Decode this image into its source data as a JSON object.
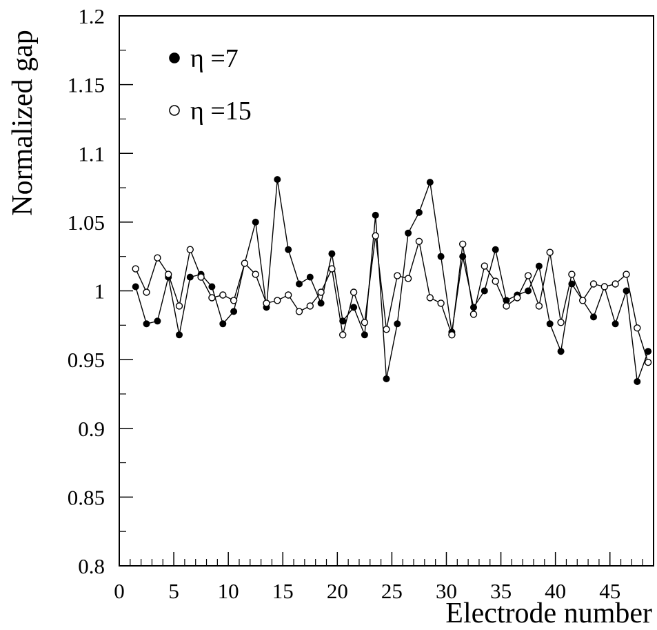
{
  "chart_data": {
    "type": "line",
    "xlabel": "Electrode number",
    "ylabel": "Normalized gap",
    "xlim": [
      0,
      49
    ],
    "ylim": [
      0.8,
      1.2
    ],
    "x_ticks": [
      0,
      5,
      10,
      15,
      20,
      25,
      30,
      35,
      40,
      45
    ],
    "x_tick_labels": [
      "0",
      "5",
      "10",
      "15",
      "20",
      "25",
      "30",
      "35",
      "40",
      "45"
    ],
    "y_ticks": [
      0.8,
      0.85,
      0.9,
      0.95,
      1.0,
      1.05,
      1.1,
      1.15,
      1.2
    ],
    "y_tick_labels": [
      "0.8",
      "0.85",
      "0.9",
      "0.95",
      "1",
      "1.05",
      "1.1",
      "1.15",
      "1.2"
    ],
    "grid": false,
    "legend_position": "top-left",
    "x": [
      1.5,
      2.5,
      3.5,
      4.5,
      5.5,
      6.5,
      7.5,
      8.5,
      9.5,
      10.5,
      11.5,
      12.5,
      13.5,
      14.5,
      15.5,
      16.5,
      17.5,
      18.5,
      19.5,
      20.5,
      21.5,
      22.5,
      23.5,
      24.5,
      25.5,
      26.5,
      27.5,
      28.5,
      29.5,
      30.5,
      31.5,
      32.5,
      33.5,
      34.5,
      35.5,
      36.5,
      37.5,
      38.5,
      39.5,
      40.5,
      41.5,
      42.5,
      43.5,
      44.5,
      45.5,
      46.5,
      47.5,
      48.5
    ],
    "series": [
      {
        "name": "η =7",
        "marker": "filled-circle",
        "values": [
          1.003,
          0.976,
          0.978,
          1.01,
          0.968,
          1.01,
          1.012,
          1.003,
          0.976,
          0.985,
          1.02,
          1.05,
          0.988,
          1.081,
          1.03,
          1.005,
          1.01,
          0.991,
          1.027,
          0.978,
          0.988,
          0.968,
          1.055,
          0.936,
          0.976,
          1.042,
          1.057,
          1.079,
          1.025,
          0.97,
          1.025,
          0.988,
          1.0,
          1.03,
          0.993,
          0.997,
          1.0,
          1.018,
          0.976,
          0.956,
          1.005,
          0.993,
          0.981,
          1.003,
          0.976,
          1.0,
          0.934,
          0.956
        ]
      },
      {
        "name": "η =15",
        "marker": "open-circle",
        "values": [
          1.016,
          0.999,
          1.024,
          1.012,
          0.989,
          1.03,
          1.01,
          0.995,
          0.997,
          0.993,
          1.02,
          1.012,
          0.991,
          0.993,
          0.997,
          0.985,
          0.989,
          0.999,
          1.016,
          0.968,
          0.999,
          0.977,
          1.04,
          0.972,
          1.011,
          1.009,
          1.036,
          0.995,
          0.991,
          0.968,
          1.034,
          0.983,
          1.018,
          1.007,
          0.989,
          0.995,
          1.011,
          0.989,
          1.028,
          0.977,
          1.012,
          0.993,
          1.005,
          1.003,
          1.005,
          1.012,
          0.973,
          0.948
        ]
      }
    ]
  }
}
